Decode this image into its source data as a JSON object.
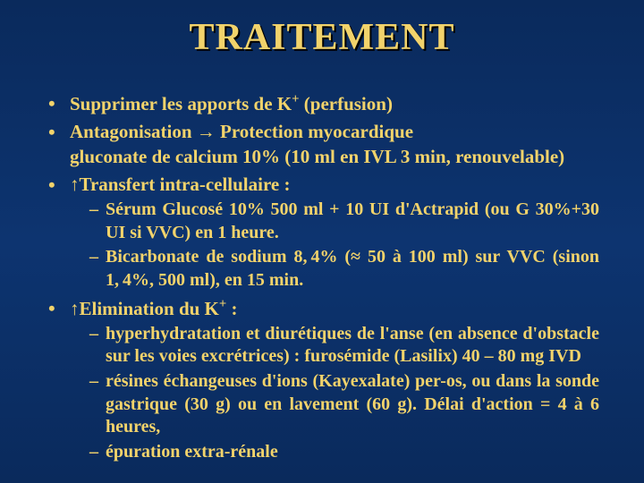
{
  "colors": {
    "background_top": "#0a2a5c",
    "background_mid": "#0d3470",
    "text_color": "#f2d36b",
    "shadow_color": "#000000"
  },
  "typography": {
    "title_fontsize": 42,
    "body_fontsize": 21,
    "sub_fontsize": 20,
    "font_family": "Times New Roman"
  },
  "title": "TRAITEMENT",
  "bullets": {
    "b1": "Supprimer les apports de K",
    "b1_sup": "+",
    "b1_tail": " (perfusion)",
    "b2_a": "Antagonisation ",
    "b2_arrow": "→",
    "b2_b": " Protection myocardique",
    "b2_line2": "gluconate de calcium 10% (10 ml en IVL 3 min, renouvelable)",
    "b3_arrow": "↑",
    "b3": "Transfert intra-cellulaire :",
    "b3_sub1": "Sérum Glucosé 10% 500 ml + 10 UI d'Actrapid (ou G 30%+30 UI si VVC) en 1 heure.",
    "b3_sub2_a": "Bicarbonate de sodium 8, 4% (",
    "b3_sub2_approx": "≈",
    "b3_sub2_b": " 50 à 100 ml) sur VVC (sinon 1, 4%, 500 ml), en 15 min.",
    "b4_arrow": "↑",
    "b4_a": "Elimination du K",
    "b4_sup": "+",
    "b4_b": " :",
    "b4_sub1": "hyperhydratation et diurétiques de l'anse (en absence d'obstacle sur les voies excrétrices) : furosémide (Lasilix) 40 – 80 mg IVD",
    "b4_sub2": "résines échangeuses d'ions (Kayexalate) per-os, ou dans la sonde gastrique (30 g) ou en lavement (60 g). Délai d'action = 4 à 6 heures,",
    "b4_sub3": "épuration extra-rénale"
  }
}
